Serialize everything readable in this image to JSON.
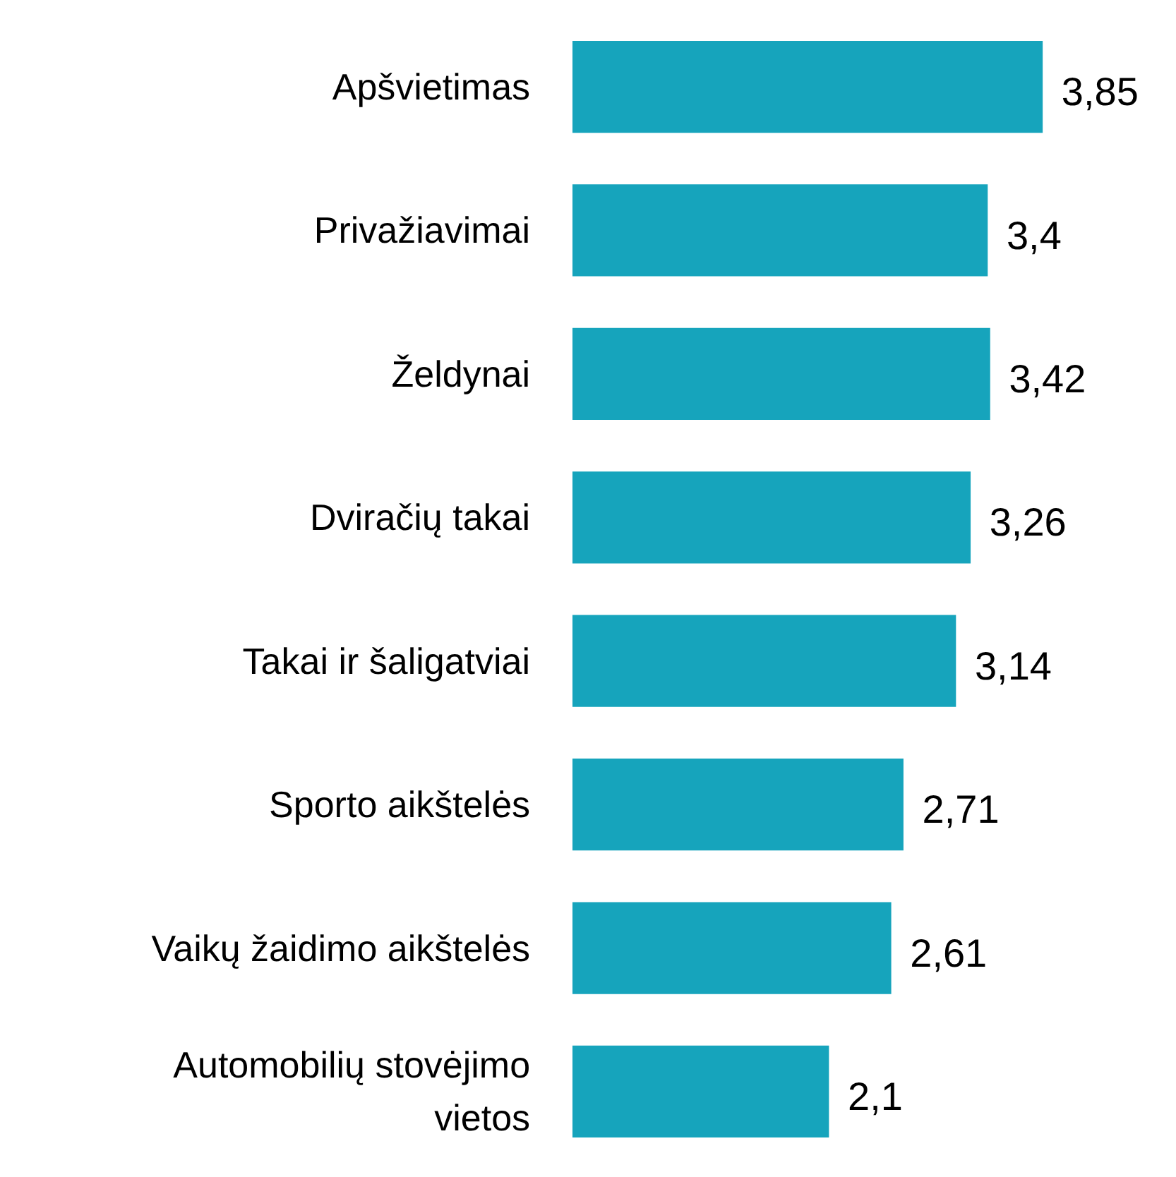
{
  "chart_data": {
    "type": "bar",
    "orientation": "horizontal",
    "categories": [
      "Apšvietimas",
      "Privažiavimai",
      "Želdynai",
      "Dviračių takai",
      "Takai ir šaligatviai",
      "Sporto aikštelės",
      "Vaikų žaidimo aikštelės",
      "Automobilių stovėjimo vietos"
    ],
    "values": [
      3.85,
      3.4,
      3.42,
      3.26,
      3.14,
      2.71,
      2.61,
      2.1
    ],
    "value_labels": [
      "3,85",
      "3,4",
      "3,42",
      "3,26",
      "3,14",
      "2,71",
      "2,61",
      "2,1"
    ],
    "color": "#16a4bc"
  }
}
